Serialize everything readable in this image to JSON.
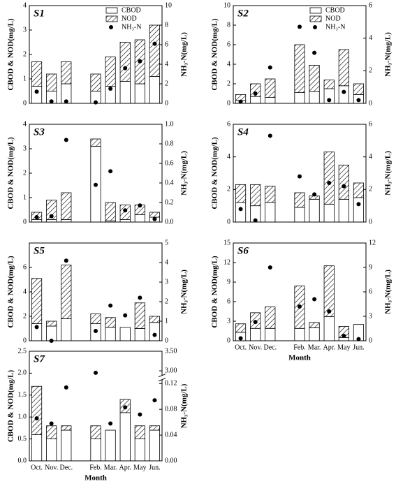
{
  "chart_data": [
    {
      "type": "bar",
      "label": "S1",
      "ylabel": "CBOD & NOD(mg/L)",
      "y2label": "NH₃-N(mg/L)",
      "ylim": [
        0,
        4
      ],
      "yticks": [
        0,
        1,
        2,
        3,
        4
      ],
      "y2lim": [
        0,
        10
      ],
      "y2ticks": [
        0,
        2,
        4,
        6,
        8,
        10
      ],
      "legend": "upper right",
      "series": [
        {
          "name": "CBOD",
          "color": "#ffffff",
          "values": [
            0.7,
            0.5,
            0.8,
            null,
            0.5,
            0.7,
            0.9,
            0.8,
            1.1
          ]
        },
        {
          "name": "NOD",
          "color": "#000000",
          "hatch": true,
          "values": [
            1.0,
            0.7,
            0.9,
            null,
            0.7,
            1.2,
            1.6,
            1.8,
            2.1
          ]
        },
        {
          "name": "NH₃-N",
          "type": "scatter",
          "axis": "y2",
          "color": "#000000",
          "values": [
            1.2,
            0.2,
            0.2,
            null,
            0.1,
            1.5,
            3.6,
            4.3,
            6.1
          ]
        }
      ]
    },
    {
      "type": "bar",
      "label": "S2",
      "ylabel": "CBOD & NOD(mg/L)",
      "y2label": "NH₃-N(mg/L)",
      "ylim": [
        0,
        10
      ],
      "yticks": [
        0,
        2,
        4,
        6,
        8,
        10
      ],
      "y2lim": [
        0,
        6
      ],
      "y2ticks": [
        0,
        2,
        4,
        6
      ],
      "legend": "upper right",
      "series": [
        {
          "name": "CBOD",
          "color": "#ffffff",
          "values": [
            0.3,
            0.7,
            0.6,
            null,
            1.1,
            1.2,
            1.5,
            1.8,
            0.9
          ]
        },
        {
          "name": "NOD",
          "color": "#000000",
          "hatch": true,
          "values": [
            0.6,
            1.3,
            1.9,
            null,
            4.9,
            2.7,
            0.9,
            3.7,
            1.1
          ]
        },
        {
          "name": "NH₃-N",
          "type": "scatter",
          "axis": "y2",
          "color": "#000000",
          "values": [
            0.1,
            0.6,
            2.2,
            null,
            4.7,
            3.1,
            0.2,
            0.7,
            0.2
          ]
        }
      ]
    },
    {
      "type": "bar",
      "label": "S3",
      "ylabel": "CBOD & NOD(mg/L)",
      "y2label": "NH₃-N(mg/L)",
      "ylim": [
        0,
        4
      ],
      "yticks": [
        0,
        1,
        2,
        3,
        4
      ],
      "y2lim": [
        0,
        1
      ],
      "y2ticks": [
        {
          "value": 0,
          "label": "0.0"
        },
        {
          "value": 0.2,
          "label": "0.2"
        },
        {
          "value": 0.4,
          "label": "0.4"
        },
        {
          "value": 0.6,
          "label": "0.6"
        },
        {
          "value": 0.8,
          "label": "0.8"
        },
        {
          "value": 1,
          "label": "1.0"
        }
      ],
      "series": [
        {
          "name": "CBOD",
          "color": "#ffffff",
          "values": [
            0.1,
            0.1,
            0.1,
            null,
            3.1,
            0.05,
            0.1,
            0.3,
            0.2
          ]
        },
        {
          "name": "NOD",
          "color": "#000000",
          "hatch": true,
          "values": [
            0.3,
            0.8,
            1.1,
            null,
            0.3,
            0.75,
            0.6,
            0.4,
            0.2
          ]
        },
        {
          "name": "NH₃-N",
          "type": "scatter",
          "axis": "y2",
          "color": "#000000",
          "values": [
            0.05,
            0.06,
            0.84,
            null,
            0.38,
            0.52,
            0.12,
            0.17,
            0.03
          ]
        }
      ]
    },
    {
      "type": "bar",
      "label": "S4",
      "ylabel": "CBOD & NOD(mg/L)",
      "y2label": "NH₃-N(mg/L)",
      "ylim": [
        0,
        6
      ],
      "yticks": [
        0,
        2,
        4,
        6
      ],
      "y2lim": [
        0,
        6
      ],
      "y2ticks": [
        0,
        2,
        4,
        6
      ],
      "series": [
        {
          "name": "CBOD",
          "color": "#ffffff",
          "values": [
            1.2,
            1.0,
            1.2,
            null,
            0.9,
            1.4,
            1.1,
            1.4,
            1.5
          ]
        },
        {
          "name": "NOD",
          "color": "#000000",
          "hatch": true,
          "values": [
            1.1,
            1.3,
            1.0,
            null,
            0.9,
            0.2,
            3.2,
            2.1,
            0.9
          ]
        },
        {
          "name": "NH₃-N",
          "type": "scatter",
          "axis": "y2",
          "color": "#000000",
          "values": [
            0.8,
            0.1,
            5.3,
            null,
            2.8,
            1.7,
            2.4,
            2.2,
            1.1
          ]
        }
      ]
    },
    {
      "type": "bar",
      "label": "S5",
      "ylabel": "CBOD & NOD(mg/L)",
      "y2label": "NH₃-N(mg/L)",
      "ylim": [
        0,
        8
      ],
      "yticks": [
        0,
        2,
        4,
        6
      ],
      "y2lim": [
        0,
        5
      ],
      "y2ticks": [
        0,
        1,
        2,
        3,
        4,
        5
      ],
      "series": [
        {
          "name": "CBOD",
          "color": "#ffffff",
          "values": [
            1.4,
            1.2,
            1.8,
            null,
            1.4,
            1.1,
            1.1,
            1.0,
            1.5
          ]
        },
        {
          "name": "NOD",
          "color": "#000000",
          "hatch": true,
          "values": [
            3.7,
            0.4,
            4.4,
            null,
            0.8,
            0.8,
            0,
            2.1,
            0.5
          ]
        },
        {
          "name": "NH₃-N",
          "type": "scatter",
          "axis": "y2",
          "color": "#000000",
          "values": [
            0.7,
            0.0,
            4.1,
            null,
            0.5,
            1.8,
            1.3,
            2.2,
            0.3
          ]
        }
      ]
    },
    {
      "type": "bar",
      "label": "S6",
      "ylabel": "CBOD & NOD(mg/L)",
      "y2label": "NH₃-N(mg/L)",
      "xlabel": "Month",
      "categories": [
        "Oct.",
        "Nov.",
        "Dec.",
        null,
        "Feb.",
        "Mar.",
        "Apr.",
        "May",
        "Jun."
      ],
      "ylim": [
        0,
        15
      ],
      "yticks": [
        0,
        3,
        6,
        9,
        12,
        15
      ],
      "y2lim": [
        0,
        12
      ],
      "y2ticks": [
        0,
        3,
        6,
        9,
        12
      ],
      "series": [
        {
          "name": "CBOD",
          "color": "#ffffff",
          "values": [
            1.3,
            1.9,
            1.9,
            null,
            1.9,
            2.0,
            3.7,
            0.5,
            2.5
          ]
        },
        {
          "name": "NOD",
          "color": "#000000",
          "hatch": true,
          "values": [
            1.3,
            2.4,
            3.3,
            null,
            6.5,
            0.8,
            7.8,
            1.7,
            0
          ]
        },
        {
          "name": "NH₃-N",
          "type": "scatter",
          "axis": "y2",
          "color": "#000000",
          "values": [
            0.3,
            2.3,
            9.0,
            null,
            4.2,
            5.1,
            3.6,
            0.6,
            0.2
          ]
        }
      ]
    },
    {
      "type": "bar",
      "label": "S7",
      "ylabel": "CBOD & NOD(mg/L)",
      "y2label": "NH₃-N(mg/L)",
      "xlabel": "Month",
      "categories": [
        "Oct.",
        "Nov.",
        "Dec.",
        null,
        "Feb.",
        "Mar.",
        "Apr.",
        "May",
        "Jun."
      ],
      "ylim": [
        0,
        2.5
      ],
      "yticks": [
        {
          "value": 0,
          "label": "0.0"
        },
        {
          "value": 0.5,
          "label": "0.5"
        },
        {
          "value": 1,
          "label": "1.0"
        },
        {
          "value": 1.5,
          "label": "1.5"
        },
        {
          "value": 2,
          "label": "2.0"
        },
        {
          "value": 2.5,
          "label": "2.5"
        }
      ],
      "y2lim": [
        0,
        3.5
      ],
      "y2break": [
        0.125,
        2.9
      ],
      "y2ticks": [
        {
          "value": 0,
          "label": "0.00"
        },
        {
          "value": 0.04,
          "label": "0.04"
        },
        {
          "value": 0.08,
          "label": "0.08"
        },
        {
          "value": 0.12,
          "label": "0.12"
        },
        {
          "value": 3,
          "label": "3.00"
        },
        {
          "value": 3.5,
          "label": "3.50"
        }
      ],
      "series": [
        {
          "name": "CBOD",
          "color": "#ffffff",
          "values": [
            0.6,
            0.5,
            0.7,
            null,
            0.5,
            0.7,
            1.1,
            0.5,
            0.7
          ]
        },
        {
          "name": "NOD",
          "color": "#000000",
          "hatch": true,
          "values": [
            1.1,
            0.3,
            0.1,
            null,
            0.3,
            0,
            0.3,
            0.3,
            0.1
          ]
        },
        {
          "name": "NH₃-N",
          "type": "scatter",
          "axis": "y2",
          "color": "#000000",
          "values": [
            0.066,
            0.058,
            0.114,
            null,
            2.95,
            0.058,
            0.083,
            0.072,
            0.094
          ]
        }
      ]
    }
  ]
}
